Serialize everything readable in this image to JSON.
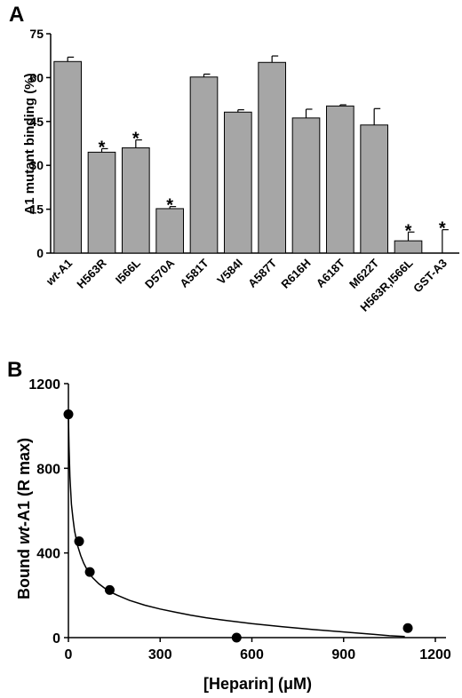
{
  "chart_data": [
    {
      "panel": "A",
      "type": "bar",
      "title": "",
      "xlabel": "",
      "ylabel": "A1 mutant binding (%)",
      "ylim": [
        0,
        75
      ],
      "yticks": [
        "0",
        "15",
        "30",
        "45",
        "60",
        "75"
      ],
      "bar_color": "#a6a6a6",
      "categories": [
        "wt-A1",
        "H563R",
        "I566L",
        "D570A",
        "A581T",
        "V584I",
        "A587T",
        "R616H",
        "A618T",
        "M622T",
        "H563R,I566L",
        "GST-A3"
      ],
      "italic_prefix": {
        "0": "wt"
      },
      "values": [
        65.5,
        34.5,
        36,
        15.2,
        60.2,
        48.2,
        65.2,
        46.2,
        50.3,
        43.8,
        4.2,
        0
      ],
      "errors": [
        1.5,
        1.2,
        2.7,
        0.7,
        1,
        0.8,
        2.2,
        3,
        0.4,
        5.6,
        3,
        8
      ],
      "significant": [
        false,
        true,
        true,
        true,
        false,
        false,
        false,
        false,
        false,
        false,
        true,
        true
      ],
      "significance_marker": "*",
      "grid": false
    },
    {
      "panel": "B",
      "type": "scatter",
      "title": "",
      "xlabel": "[Heparin] (μM)",
      "ylabel": "Bound wt-A1 (R max)",
      "ylabel_parts": [
        "Bound ",
        "wt",
        "-A1 (R max)"
      ],
      "xlim": [
        0,
        1200
      ],
      "ylim": [
        0,
        1200
      ],
      "xticks": [
        "0",
        "300",
        "600",
        "900",
        "1200"
      ],
      "yticks": [
        "0",
        "400",
        "800",
        "1200"
      ],
      "points": [
        {
          "x": 0,
          "y": 1055
        },
        {
          "x": 35,
          "y": 455
        },
        {
          "x": 70,
          "y": 310
        },
        {
          "x": 135,
          "y": 225
        },
        {
          "x": 550,
          "y": 0
        },
        {
          "x": 1110,
          "y": 45
        }
      ],
      "fit_curve": {
        "x": [
          0,
          2,
          5,
          10,
          15,
          20,
          30,
          40,
          50,
          60,
          70,
          80,
          100,
          120,
          140,
          160,
          200,
          250,
          300,
          350,
          400,
          450,
          500,
          600,
          700,
          800,
          900,
          1000,
          1050,
          1100
        ],
        "y": [
          1050,
          900,
          760,
          630,
          560,
          505,
          435,
          388,
          352,
          323,
          300,
          282,
          254,
          232,
          214,
          200,
          176,
          153,
          135,
          120,
          106,
          94,
          84,
          66,
          51,
          38,
          27,
          15,
          9,
          5
        ]
      },
      "grid": false
    }
  ]
}
